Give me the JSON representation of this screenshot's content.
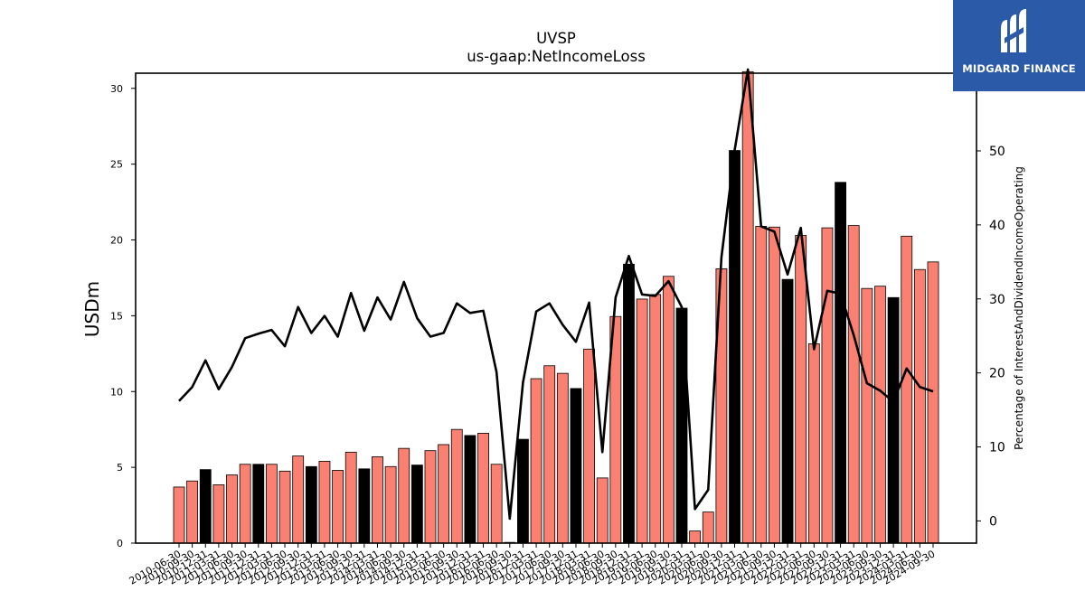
{
  "chart_data": {
    "type": "bar+line",
    "title": "UVSP",
    "subtitle": "us-gaap:NetIncomeLoss",
    "ylabel": "USDm",
    "ylabel_right": "Percentage of InterestAndDividendIncomeOperating",
    "ylim": [
      0,
      31
    ],
    "ylim_right": [
      -3,
      60.5
    ],
    "yticks": [
      0,
      5,
      10,
      15,
      20,
      25,
      30
    ],
    "yticks_right": [
      0,
      10,
      20,
      30,
      40,
      50
    ],
    "grid": false,
    "colors": {
      "bar_default": "#fa8072",
      "bar_highlight": "#000000",
      "line": "#000000",
      "bar_edge": "#000000"
    },
    "categories": [
      "2010-06-30",
      "2010-09-30",
      "2010-12-31",
      "2011-03-31",
      "2011-06-30",
      "2011-09-30",
      "2011-12-31",
      "2012-03-31",
      "2012-06-30",
      "2012-09-30",
      "2012-12-31",
      "2013-03-31",
      "2013-06-30",
      "2013-09-30",
      "2013-12-31",
      "2014-03-31",
      "2014-06-30",
      "2014-09-30",
      "2014-12-31",
      "2015-03-31",
      "2015-06-30",
      "2015-09-30",
      "2015-12-31",
      "2016-03-31",
      "2016-06-30",
      "2016-09-30",
      "2016-12-31",
      "2017-03-31",
      "2017-06-30",
      "2017-09-30",
      "2017-12-31",
      "2018-03-31",
      "2018-06-30",
      "2018-09-30",
      "2018-12-31",
      "2019-03-31",
      "2019-06-30",
      "2019-09-30",
      "2019-12-31",
      "2020-03-31",
      "2020-06-30",
      "2020-09-30",
      "2020-12-31",
      "2021-03-31",
      "2021-06-30",
      "2021-09-30",
      "2021-12-31",
      "2022-03-31",
      "2022-06-30",
      "2022-09-30",
      "2022-12-31",
      "2023-03-31",
      "2023-06-30",
      "2023-09-30",
      "2023-12-31",
      "2024-03-31",
      "2024-06-30",
      "2024-09-30"
    ],
    "xtick_labels": [
      "2010-06-30",
      "2010-09-30",
      "2010-12-31",
      "2011-03-31",
      "2011-06-30",
      "2011-09-30",
      "2011-12-31",
      "2012-03-31",
      "2012-06-30",
      "2012-09-30",
      "2012-12-31",
      "2013-03-31",
      "2013-06-30",
      "2013-09-30",
      "2013-12-31",
      "2014-03-31",
      "2014-06-30",
      "2014-09-30",
      "2014-12-31",
      "2015-03-31",
      "2015-06-30",
      "2015-09-30",
      "2015-12-31",
      "2016-03-31",
      "2016-06-30",
      "2016-09-30",
      "2016-12-31",
      "2017-03-31",
      "2017-06-30",
      "2017-09-30",
      "2017-12-31",
      "2018-03-31",
      "2018-06-30",
      "2018-09-30",
      "2018-12-31",
      "2019-03-31",
      "2019-06-30",
      "2019-09-30",
      "2019-12-31",
      "2020-03-31",
      "2020-06-30",
      "2020-09-30",
      "2020-12-31",
      "2021-03-31",
      "2021-06-30",
      "2021-09-30",
      "2021-12-31",
      "2022-03-31",
      "2022-06-30",
      "2022-09-30",
      "2022-12-31",
      "2023-03-31",
      "2023-06-30",
      "2023-09-30",
      "2023-12-31",
      "2024-03-31",
      "2024-06-30",
      "2024-09-30"
    ],
    "series": [
      {
        "type": "bar",
        "axis": "left",
        "values": [
          3.7,
          4.1,
          4.85,
          3.85,
          4.5,
          5.2,
          5.2,
          5.2,
          4.75,
          5.75,
          5.05,
          5.4,
          4.8,
          6.0,
          4.9,
          5.7,
          5.05,
          6.25,
          5.15,
          6.1,
          6.5,
          7.5,
          7.1,
          7.25,
          5.2,
          0.05,
          6.85,
          10.85,
          11.7,
          11.2,
          10.2,
          12.8,
          4.3,
          14.95,
          18.4,
          16.1,
          16.4,
          17.6,
          15.5,
          0.8,
          2.05,
          18.1,
          25.9,
          31.1,
          20.9,
          20.85,
          17.4,
          20.3,
          13.15,
          20.8,
          23.8,
          20.95,
          16.8,
          16.95,
          16.2,
          20.25,
          18.05,
          18.55
        ],
        "highlight": [
          false,
          false,
          true,
          false,
          false,
          false,
          true,
          false,
          false,
          false,
          true,
          false,
          false,
          false,
          true,
          false,
          false,
          false,
          true,
          false,
          false,
          false,
          true,
          false,
          false,
          false,
          true,
          false,
          false,
          false,
          true,
          false,
          false,
          false,
          true,
          false,
          false,
          false,
          true,
          false,
          false,
          false,
          true,
          false,
          false,
          false,
          true,
          false,
          false,
          false,
          true,
          false,
          false,
          false,
          true,
          false,
          false,
          false
        ]
      },
      {
        "type": "line",
        "axis": "right",
        "values": [
          16.2,
          18.1,
          21.7,
          17.8,
          20.8,
          24.7,
          25.3,
          25.8,
          23.6,
          28.9,
          25.4,
          27.7,
          24.9,
          30.8,
          25.7,
          30.2,
          27.2,
          32.3,
          27.4,
          24.9,
          25.4,
          29.4,
          28.1,
          28.4,
          20.1,
          0.3,
          18.7,
          28.3,
          29.4,
          26.5,
          24.2,
          29.5,
          9.3,
          30.2,
          35.8,
          30.6,
          30.4,
          32.4,
          28.9,
          1.6,
          4.2,
          35.6,
          50.1,
          61.0,
          39.8,
          39.1,
          33.3,
          39.6,
          23.2,
          31.1,
          30.7,
          25.1,
          18.6,
          17.6,
          16.1,
          20.6,
          18.1,
          17.5
        ]
      }
    ]
  },
  "logo": {
    "text": "MIDGARD FINANCE"
  }
}
